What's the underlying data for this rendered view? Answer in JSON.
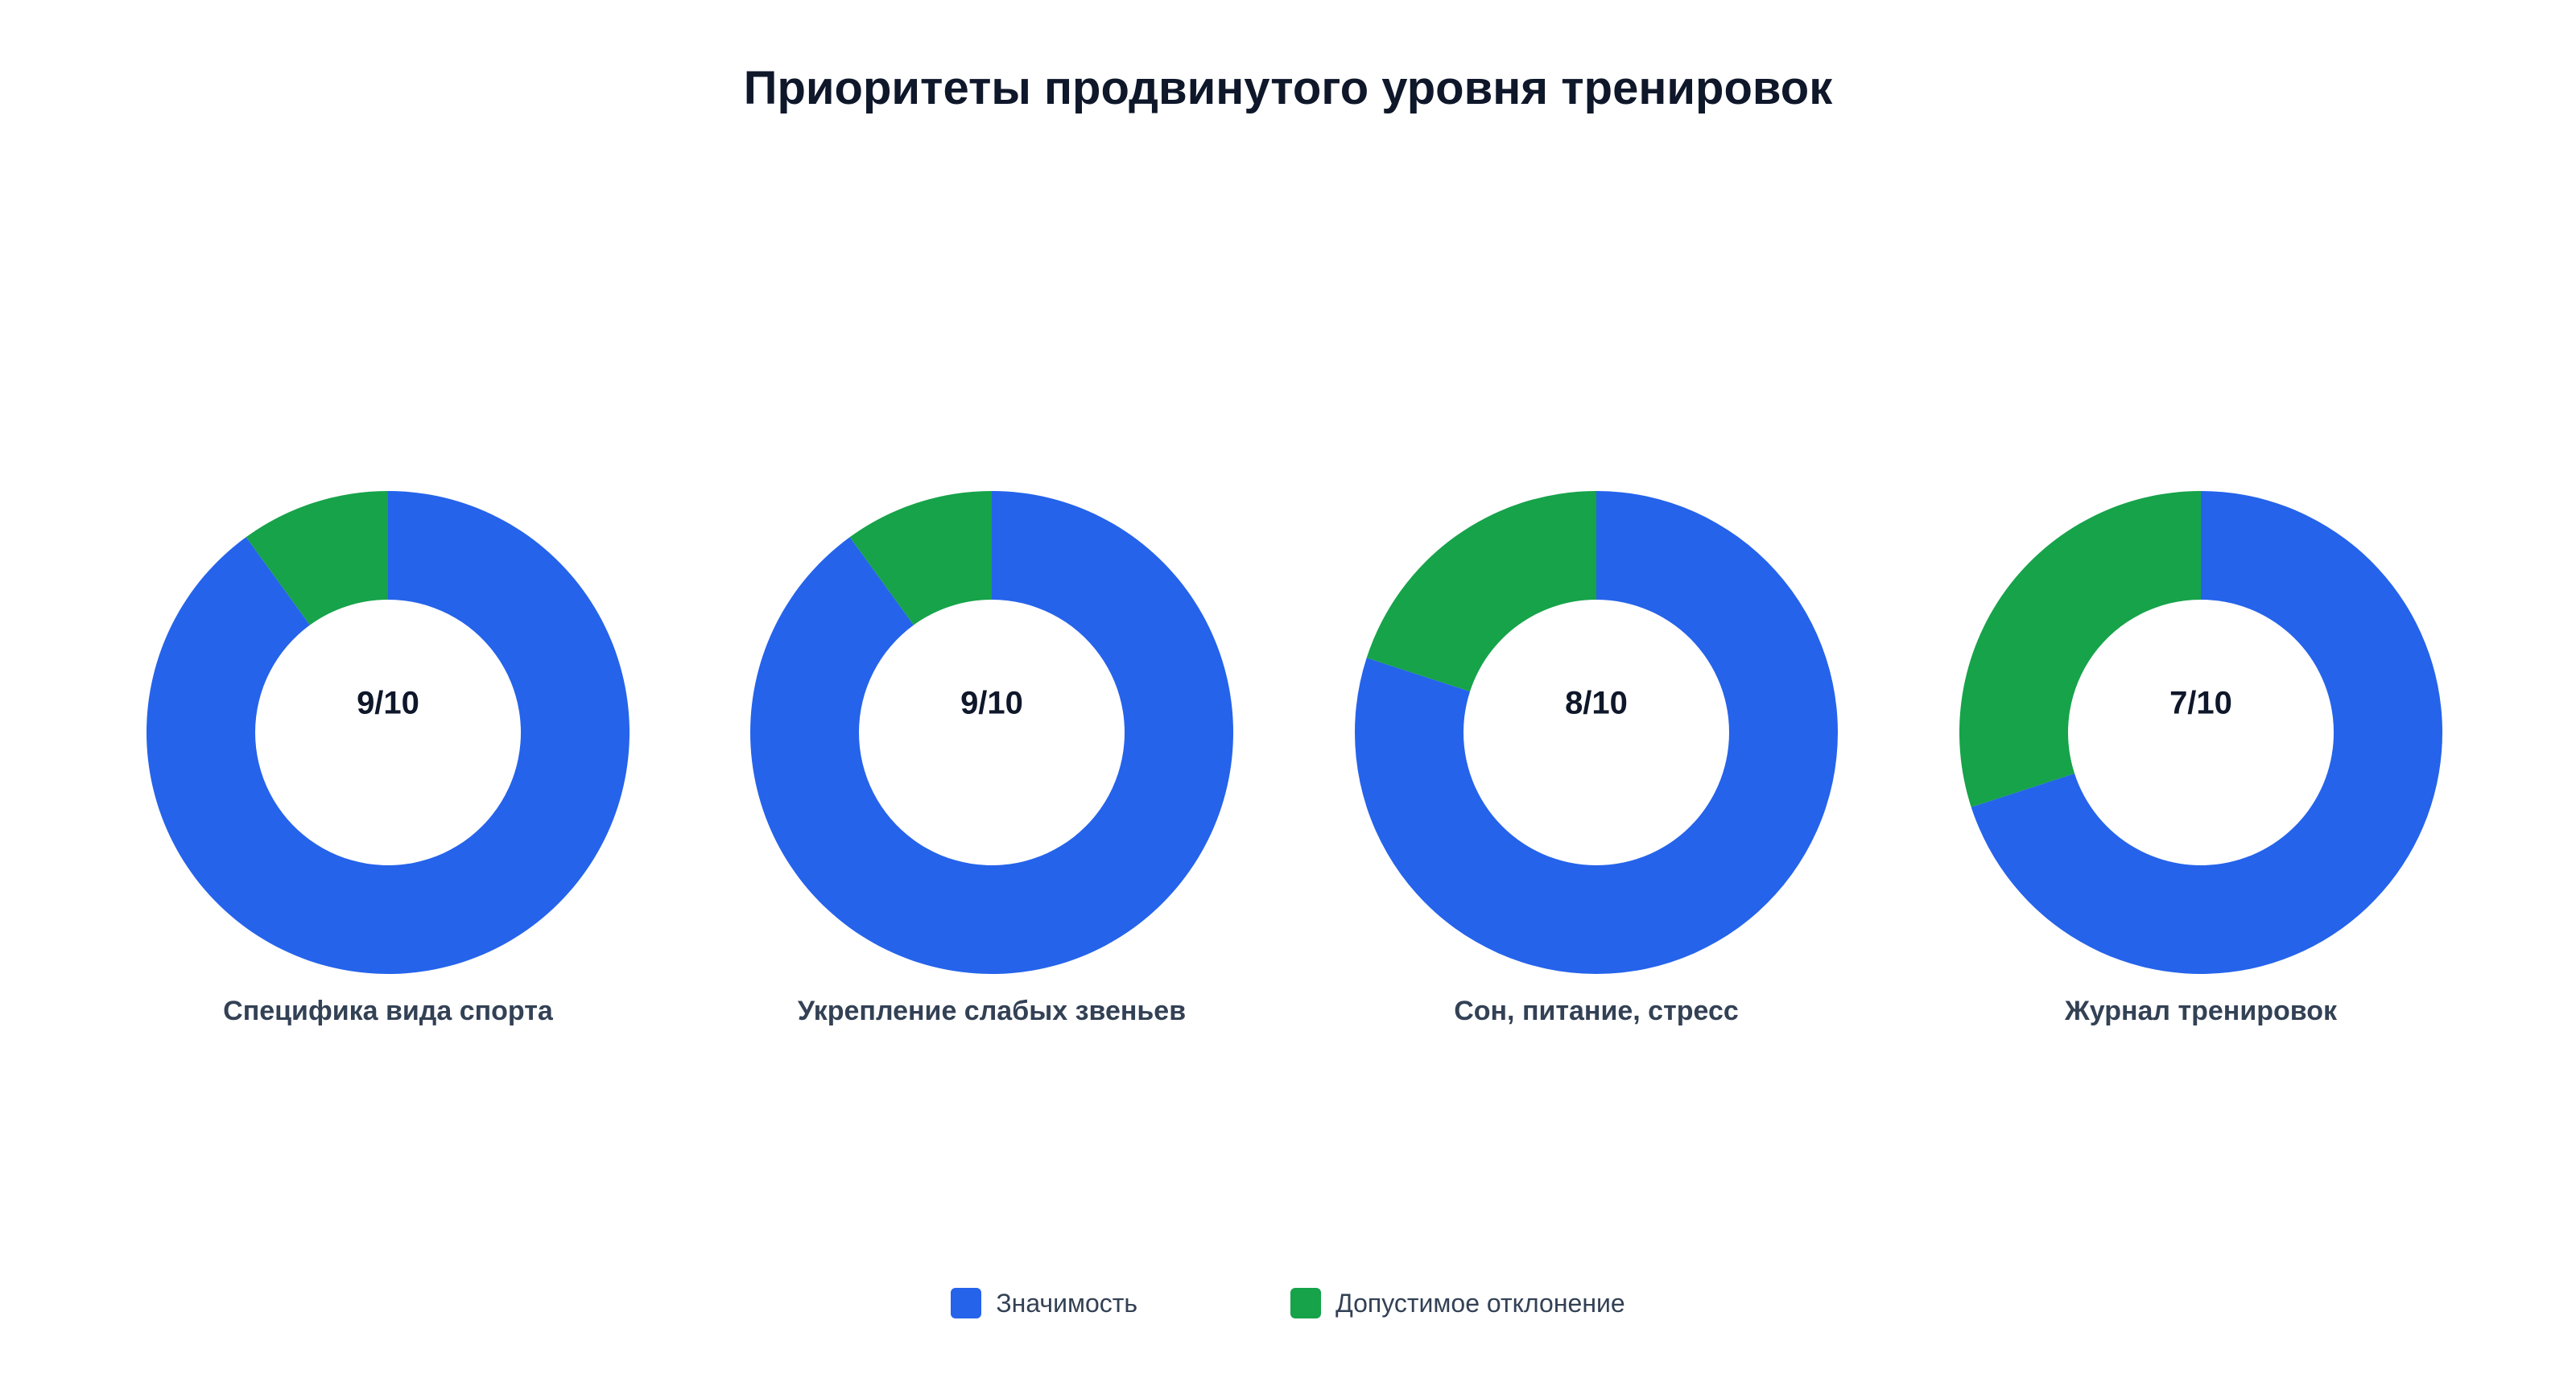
{
  "chart_data": {
    "type": "pie",
    "title": "Приоритеты продвинутого уровня тренировок",
    "categories": [
      "Специфика вида спорта",
      "Укрепление слабых звеньев",
      "Сон, питание, стресс",
      "Журнал тренировок"
    ],
    "center_labels": [
      "9/10",
      "9/10",
      "8/10",
      "7/10"
    ],
    "series": [
      {
        "name": "Значимость",
        "values": [
          9,
          9,
          8,
          7
        ],
        "color": "#2563eb"
      },
      {
        "name": "Допустимое отклонение",
        "values": [
          1,
          1,
          2,
          3
        ],
        "color": "#16a34a"
      }
    ],
    "legend_position": "bottom",
    "donut": true
  }
}
